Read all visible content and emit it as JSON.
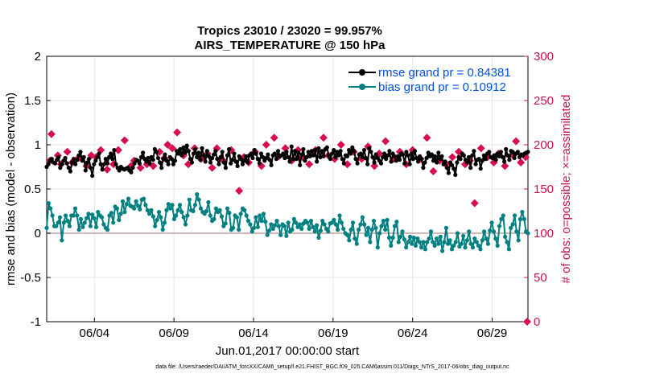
{
  "chart_data": {
    "type": "line",
    "title_line1": "Tropics 23010 / 23020 = 99.957%",
    "title_line2": "AIRS_TEMPERATURE @ 150 hPa",
    "xlabel": "Jun.01,2017 00:00:00 start",
    "ylabel_left": "rmse and bias (model - observation)",
    "ylabel_right": "# of obs: o=possible; ×=assimilated",
    "footnote": "data file: /Users/raeder/DAI/ATM_forcXX/CAM6_setup/f.e21.FHIST_BGC.f09_025.CAM6assim.011/Diags_NTrS_2017-06/obs_diag_output.nc",
    "xlim": [
      0.5,
      30.75
    ],
    "ylim_left": [
      -1,
      2
    ],
    "ylim_right": [
      0,
      300
    ],
    "x_ticks": [
      3.5,
      8.5,
      13.5,
      18.5,
      23.5,
      28.5
    ],
    "x_tick_labels": [
      "06/04",
      "06/09",
      "06/14",
      "06/19",
      "06/24",
      "06/29"
    ],
    "y_ticks_left": [
      -1,
      -0.5,
      0,
      0.5,
      1,
      1.5,
      2
    ],
    "y_tick_labels_left": [
      "-1",
      "-0.5",
      "0",
      "0.5",
      "1",
      "1.5",
      "2"
    ],
    "y_ticks_right": [
      0,
      50,
      100,
      150,
      200,
      250,
      300
    ],
    "y_tick_labels_right": [
      "0",
      "50",
      "100",
      "150",
      "200",
      "250",
      "300"
    ],
    "legend": [
      {
        "label": "rmse grand pr = 0.84381",
        "color": "#000000"
      },
      {
        "label": "bias grand pr = 0.10912",
        "color": "#008080"
      }
    ],
    "series": [
      {
        "name": "rmse",
        "color": "#000000",
        "values": [
          0.75,
          0.78,
          0.82,
          0.84,
          0.8,
          0.79,
          0.83,
          0.86,
          0.74,
          0.78,
          0.82,
          0.85,
          0.79,
          0.74,
          0.7,
          0.8,
          0.84,
          0.78,
          0.83,
          0.88,
          0.92,
          0.82,
          0.86,
          0.71,
          0.8,
          0.84,
          0.74,
          0.65,
          0.78,
          0.82,
          0.86,
          0.9,
          0.78,
          0.72,
          0.78,
          0.84,
          0.79,
          0.86,
          0.9,
          0.84,
          0.94,
          0.78,
          0.74,
          0.71,
          0.75,
          0.73,
          0.72,
          0.73,
          0.74,
          0.71,
          0.69,
          0.74,
          0.79,
          0.83,
          0.82,
          0.79,
          0.86,
          0.91,
          0.84,
          0.81,
          0.85,
          0.79,
          0.86,
          0.83,
          0.95,
          0.92,
          0.85,
          0.8,
          0.74,
          0.84,
          0.89,
          0.82,
          0.78,
          0.86,
          0.84,
          0.78,
          0.82,
          0.93,
          0.9,
          0.95,
          0.88,
          0.97,
          0.91,
          0.99,
          0.93,
          0.84,
          0.8,
          0.9,
          0.95,
          0.86,
          0.91,
          0.83,
          0.96,
          0.88,
          0.81,
          0.93,
          0.87,
          0.8,
          0.85,
          0.89,
          0.93,
          0.84,
          0.78,
          0.86,
          0.92,
          0.8,
          0.74,
          0.88,
          0.95,
          0.79,
          0.83,
          0.9,
          0.81,
          0.76,
          0.87,
          0.84,
          0.78,
          0.82,
          0.87,
          0.8,
          0.88,
          0.9,
          0.85,
          0.94,
          0.9,
          0.84,
          0.79,
          0.9,
          0.86,
          0.82,
          0.85,
          0.89,
          0.83,
          0.77,
          0.88,
          0.9,
          0.84,
          0.93,
          0.87,
          0.88,
          0.9,
          0.85,
          0.92,
          0.86,
          0.81,
          0.98,
          0.84,
          0.93,
          0.84,
          0.91,
          0.77,
          0.89,
          0.95,
          0.82,
          0.86,
          0.92,
          0.87,
          0.93,
          0.88,
          0.94,
          0.81,
          0.96,
          0.86,
          0.93,
          0.87,
          0.95,
          0.97,
          0.88,
          0.84,
          0.9,
          0.94,
          0.86,
          0.92,
          0.88,
          0.93,
          0.84,
          0.79,
          0.88,
          0.87,
          0.94,
          0.9,
          0.97,
          0.93,
          0.84,
          0.79,
          0.89,
          0.9,
          0.86,
          0.94,
          0.85,
          0.78,
          0.96,
          0.92,
          0.86,
          0.8,
          0.89,
          0.85,
          0.82,
          0.79,
          0.86,
          0.9,
          0.84,
          0.88,
          0.93,
          0.81,
          0.9,
          0.87,
          0.82,
          0.87,
          0.83,
          0.9,
          0.89,
          0.79,
          0.92,
          0.88,
          0.78,
          0.9,
          0.84,
          0.93,
          0.85,
          0.81,
          0.87,
          0.84,
          0.74,
          0.8,
          0.85,
          0.91,
          0.87,
          0.89,
          0.82,
          0.87,
          0.8,
          0.91,
          0.84,
          0.87,
          0.78,
          0.81,
          0.74,
          0.68,
          0.8,
          0.77,
          0.73,
          0.66,
          0.8,
          0.86,
          0.84,
          0.9,
          0.88,
          0.83,
          0.8,
          0.86,
          0.74,
          0.88,
          0.93,
          0.78,
          0.83,
          0.84,
          0.73,
          0.82,
          0.88,
          0.84,
          0.9,
          0.92,
          0.86,
          0.85,
          0.88,
          0.83,
          0.9,
          0.87,
          0.92,
          0.86,
          0.81,
          0.95,
          0.88,
          0.83,
          0.93,
          0.92,
          0.85,
          0.9,
          0.92,
          0.86,
          0.89,
          0.88,
          0.9,
          0.91,
          0.92
        ]
      },
      {
        "name": "bias",
        "color": "#008080",
        "values": [
          0.06,
          0.34,
          0.28,
          0.2,
          0.08,
          0.08,
          0.12,
          0.18,
          -0.08,
          0.12,
          0.2,
          0.14,
          0.08,
          0.2,
          0.2,
          0.28,
          0.2,
          0.04,
          0.16,
          0.07,
          0.12,
          0.17,
          0.22,
          0.08,
          0.21,
          0.17,
          0.07,
          0.24,
          0.2,
          0.18,
          0.1,
          0.06,
          0.04,
          0.2,
          0.23,
          0.12,
          0.3,
          0.28,
          0.15,
          0.22,
          0.36,
          0.24,
          0.33,
          0.39,
          0.31,
          0.3,
          0.28,
          0.36,
          0.31,
          0.27,
          0.38,
          0.39,
          0.32,
          0.26,
          0.22,
          0.26,
          0.19,
          0.08,
          0.15,
          0.24,
          0.18,
          0.04,
          0.12,
          0.26,
          0.33,
          0.28,
          0.32,
          0.16,
          0.2,
          0.26,
          0.32,
          0.24,
          0.18,
          0.1,
          0.2,
          0.38,
          0.26,
          0.25,
          0.32,
          0.44,
          0.38,
          0.28,
          0.24,
          0.22,
          0.25,
          0.35,
          0.2,
          0.14,
          0.16,
          0.28,
          0.24,
          0.26,
          0.19,
          0.08,
          0.11,
          0.28,
          0.23,
          0.04,
          0.06,
          0.2,
          0.18,
          0.04,
          0.22,
          0.28,
          0.26,
          0.2,
          0.14,
          0.1,
          0.02,
          0.06,
          0.18,
          0.07,
          0.2,
          0.14,
          0.22,
          0.13,
          -0.02,
          0.03,
          0.1,
          0.05,
          0.09,
          0.14,
          0.08,
          -0.02,
          0.1,
          0.08,
          -0.03,
          0.12,
          0.02,
          0.04,
          0.16,
          0.12,
          0.07,
          0.1,
          0.05,
          0.11,
          0.14,
          0.12,
          0.05,
          0.14,
          0.07,
          0.02,
          0.09,
          -0.05,
          0.03,
          0.14,
          0.1,
          0.05,
          0.02,
          0.11,
          0.12,
          0.15,
          0.1,
          0.04,
          0.2,
          0.12,
          0.05,
          0.0,
          -0.02,
          -0.08,
          0.04,
          0.12,
          -0.06,
          -0.12,
          0.04,
          0.1,
          0.18,
          0.1,
          -0.02,
          0.06,
          -0.1,
          0.04,
          0.14,
          0.06,
          -0.16,
          0.0,
          0.08,
          0.14,
          0.04,
          0.15,
          -0.05,
          -0.14,
          -0.05,
          0.08,
          0.13,
          -0.1,
          -0.04,
          0.02,
          -0.07,
          -0.16,
          -0.1,
          -0.04,
          -0.12,
          -0.05,
          -0.14,
          -0.06,
          -0.1,
          -0.16,
          -0.1,
          -0.18,
          -0.1,
          -0.06,
          0.02,
          -0.1,
          -0.14,
          -0.06,
          -0.12,
          -0.04,
          -0.2,
          -0.1,
          0.06,
          -0.12,
          -0.08,
          -0.18,
          -0.14,
          -0.1,
          0.0,
          -0.15,
          -0.12,
          -0.03,
          -0.16,
          -0.08,
          0.02,
          -0.12,
          -0.16,
          -0.06,
          -0.1,
          -0.14,
          -0.18,
          -0.08,
          0.02,
          -0.06,
          -0.12,
          0.03,
          0.12,
          0.02,
          -0.06,
          -0.14,
          0.08,
          0.16,
          0.2,
          -0.04,
          -0.1,
          -0.18,
          0.06,
          0.1,
          0.2,
          0.02,
          -0.08,
          0.16,
          0.24,
          0.16,
          0.02,
          0.0
        ]
      }
    ],
    "scatter_right": {
      "name": "# of obs assimilated",
      "color": "#d80f4f",
      "points": [
        [
          0.7,
          182
        ],
        [
          0.8,
          212
        ],
        [
          1.2,
          188
        ],
        [
          1.4,
          178
        ],
        [
          1.8,
          192
        ],
        [
          2.1,
          180
        ],
        [
          2.5,
          185
        ],
        [
          3.0,
          176
        ],
        [
          3.3,
          188
        ],
        [
          3.6,
          186
        ],
        [
          3.9,
          194
        ],
        [
          4.3,
          172
        ],
        [
          4.7,
          178
        ],
        [
          5.0,
          194
        ],
        [
          5.4,
          205
        ],
        [
          5.8,
          176
        ],
        [
          6.0,
          182
        ],
        [
          6.4,
          174
        ],
        [
          6.8,
          178
        ],
        [
          7.2,
          176
        ],
        [
          7.6,
          192
        ],
        [
          7.9,
          185
        ],
        [
          8.1,
          200
        ],
        [
          8.4,
          196
        ],
        [
          8.7,
          214
        ],
        [
          9.1,
          188
        ],
        [
          9.4,
          178
        ],
        [
          9.8,
          196
        ],
        [
          10.2,
          184
        ],
        [
          10.6,
          190
        ],
        [
          10.9,
          174
        ],
        [
          11.2,
          196
        ],
        [
          11.6,
          182
        ],
        [
          12.1,
          194
        ],
        [
          12.6,
          148
        ],
        [
          12.9,
          186
        ],
        [
          13.2,
          180
        ],
        [
          13.6,
          192
        ],
        [
          14.0,
          176
        ],
        [
          14.3,
          200
        ],
        [
          14.8,
          208
        ],
        [
          15.1,
          187
        ],
        [
          15.5,
          196
        ],
        [
          15.9,
          182
        ],
        [
          16.3,
          194
        ],
        [
          16.6,
          186
        ],
        [
          17.0,
          178
        ],
        [
          17.4,
          194
        ],
        [
          17.9,
          208
        ],
        [
          18.2,
          188
        ],
        [
          18.6,
          184
        ],
        [
          19.0,
          200
        ],
        [
          19.4,
          178
        ],
        [
          19.8,
          192
        ],
        [
          20.3,
          184
        ],
        [
          20.7,
          198
        ],
        [
          21.1,
          176
        ],
        [
          21.4,
          190
        ],
        [
          21.8,
          204
        ],
        [
          22.3,
          184
        ],
        [
          22.7,
          192
        ],
        [
          23.1,
          178
        ],
        [
          23.5,
          194
        ],
        [
          24.0,
          184
        ],
        [
          24.4,
          208
        ],
        [
          24.8,
          170
        ],
        [
          25.2,
          182
        ],
        [
          25.6,
          178
        ],
        [
          26.0,
          186
        ],
        [
          26.4,
          192
        ],
        [
          26.8,
          178
        ],
        [
          27.1,
          182
        ],
        [
          27.4,
          134
        ],
        [
          27.8,
          196
        ],
        [
          28.2,
          186
        ],
        [
          28.6,
          180
        ],
        [
          28.9,
          190
        ],
        [
          29.3,
          176
        ],
        [
          29.8,
          188
        ],
        [
          30.0,
          204
        ],
        [
          30.3,
          180
        ],
        [
          30.6,
          186
        ]
      ]
    },
    "corner_marker": {
      "x": 30.7,
      "y_right": 0
    }
  }
}
